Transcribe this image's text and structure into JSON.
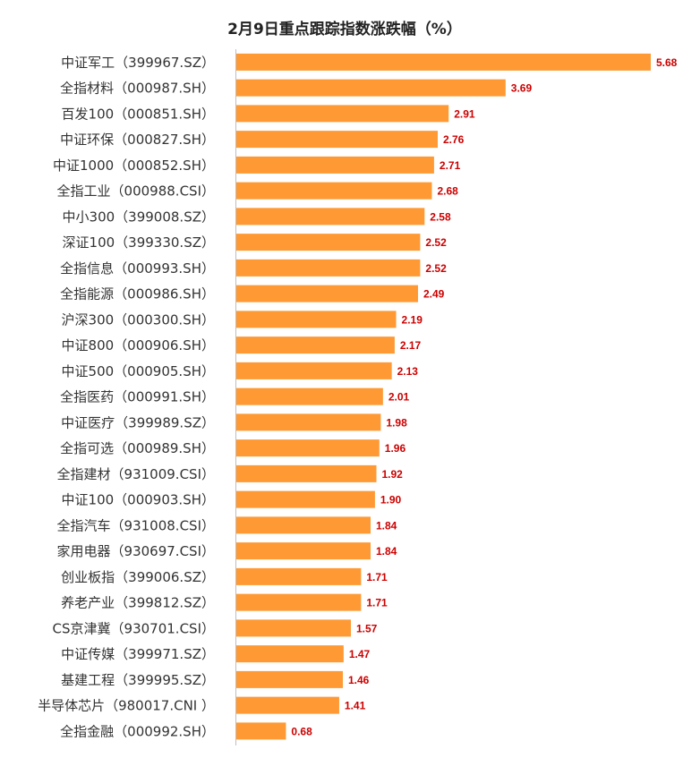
{
  "chart_data": {
    "type": "bar",
    "orientation": "horizontal",
    "title": "2月9日重点跟踪指数涨跌幅（%）",
    "categories": [
      "中证军工（399967.SZ）",
      "全指材料（000987.SH）",
      "百发100（000851.SH）",
      "中证环保（000827.SH）",
      "中证1000（000852.SH）",
      "全指工业（000988.CSI）",
      "中小300（399008.SZ）",
      "深证100（399330.SZ）",
      "全指信息（000993.SH）",
      "全指能源（000986.SH）",
      "沪深300（000300.SH）",
      "中证800（000906.SH）",
      "中证500（000905.SH）",
      "全指医药（000991.SH）",
      "中证医疗（399989.SZ）",
      "全指可选（000989.SH）",
      "全指建材（931009.CSI）",
      "中证100（000903.SH）",
      "全指汽车（931008.CSI）",
      "家用电器（930697.CSI）",
      "创业板指（399006.SZ）",
      "养老产业（399812.SZ）",
      "CS京津冀（930701.CSI）",
      "中证传媒（399971.SZ）",
      "基建工程（399995.SZ）",
      "半导体芯片（980017.CNI ）",
      "全指金融（000992.SH）"
    ],
    "values": [
      5.68,
      3.69,
      2.91,
      2.76,
      2.71,
      2.68,
      2.58,
      2.52,
      2.52,
      2.49,
      2.19,
      2.17,
      2.13,
      2.01,
      1.98,
      1.96,
      1.92,
      1.9,
      1.84,
      1.84,
      1.71,
      1.71,
      1.57,
      1.47,
      1.46,
      1.41,
      0.68
    ],
    "value_labels": [
      "5.68",
      "3.69",
      "2.91",
      "2.76",
      "2.71",
      "2.68",
      "2.58",
      "2.52",
      "2.52",
      "2.49",
      "2.19",
      "2.17",
      "2.13",
      "2.01",
      "1.98",
      "1.96",
      "1.92",
      "1.90",
      "1.84",
      "1.84",
      "1.71",
      "1.71",
      "1.57",
      "1.47",
      "1.46",
      "1.41",
      "0.68"
    ],
    "xlim": [
      0,
      5.68
    ],
    "grid": false,
    "legend": "none",
    "bar_color": "#ff9933",
    "label_color": "#cc0000",
    "axis_color": "#bfbfbf"
  }
}
